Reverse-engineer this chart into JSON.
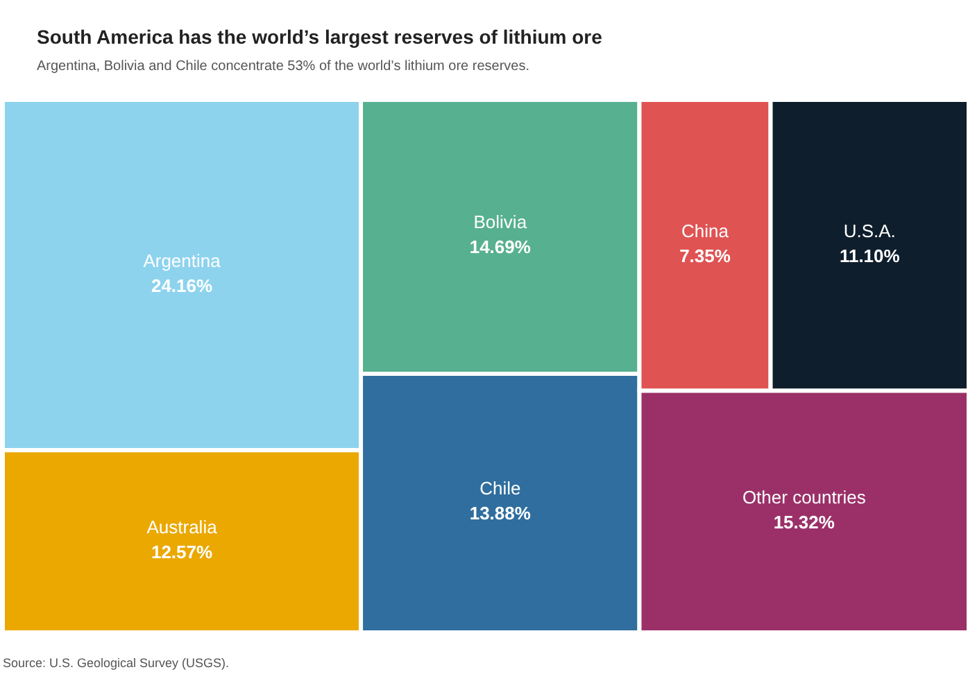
{
  "chart_data": {
    "type": "other",
    "title": "South America has the world’s largest reserves of lithium ore",
    "subtitle": "Argentina, Bolivia and Chile concentrate 53% of the world’s lithium ore reserves.",
    "categories": [
      "Argentina",
      "Australia",
      "Bolivia",
      "Chile",
      "China",
      "U.S.A.",
      "Other countries"
    ],
    "values": [
      24.16,
      12.57,
      14.69,
      13.88,
      7.35,
      11.1,
      15.32
    ],
    "value_labels": [
      "24.16%",
      "12.57%",
      "14.69%",
      "13.88%",
      "7.35%",
      "11.10%",
      "15.32%"
    ],
    "colors": [
      "#8dd3ee",
      "#eaa800",
      "#57b08f",
      "#2f6e9e",
      "#e05353",
      "#0f1e2c",
      "#9b3068"
    ],
    "annotations": [
      "Source: U.S. Geological Survey (USGS)."
    ]
  }
}
